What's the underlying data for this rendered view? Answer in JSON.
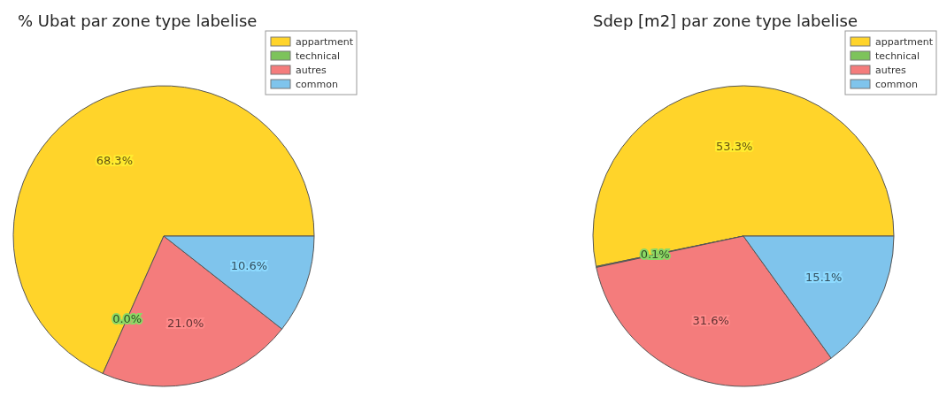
{
  "chart_data": [
    {
      "type": "pie",
      "title": "% Ubat par zone type labelise",
      "categories": [
        "appartment",
        "technical",
        "autres",
        "common"
      ],
      "values": [
        68.3,
        0.0,
        21.0,
        10.6
      ],
      "value_labels": [
        "68.3%",
        "0.0%",
        "21.0%",
        "10.6%"
      ],
      "colors": [
        "#ffd42a",
        "#7dc35b",
        "#f47c7c",
        "#7fc4ec"
      ],
      "legend": "top right"
    },
    {
      "type": "pie",
      "title": "Sdep [m2] par zone type labelise",
      "categories": [
        "appartment",
        "technical",
        "autres",
        "common"
      ],
      "values": [
        53.3,
        0.1,
        31.6,
        15.1
      ],
      "value_labels": [
        "53.3%",
        "0.1%",
        "31.6%",
        "15.1%"
      ],
      "colors": [
        "#ffd42a",
        "#7dc35b",
        "#f47c7c",
        "#7fc4ec"
      ],
      "legend": "top right"
    }
  ]
}
